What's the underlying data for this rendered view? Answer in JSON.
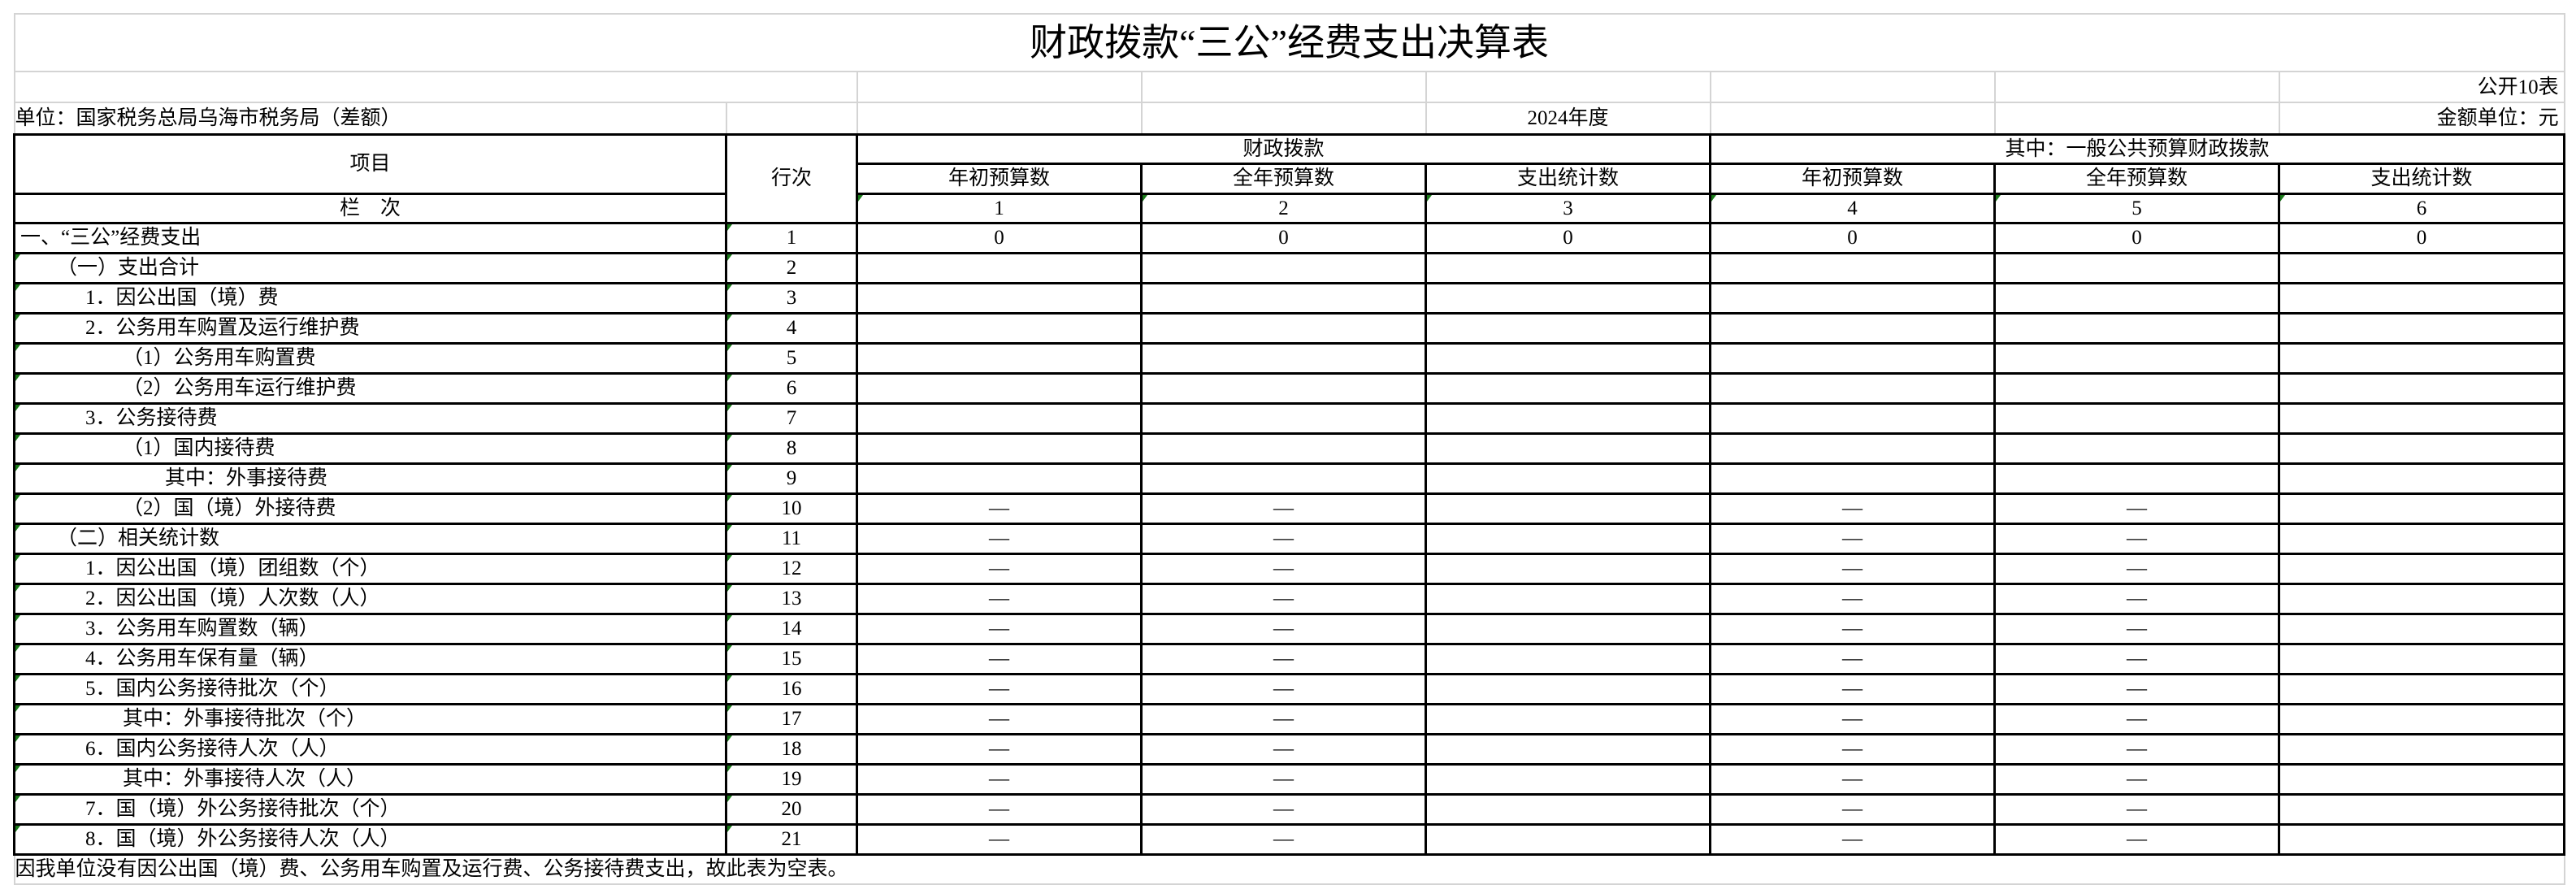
{
  "title": "财政拨款“三公”经费支出决算表",
  "form_no": "公开10表",
  "unit": "单位：国家税务总局乌海市税务局（差额）",
  "year": "2024年度",
  "amount_unit": "金额单位：元",
  "header": {
    "item": "项目",
    "line_no": "行次",
    "column_label": "栏　次",
    "group1": "财政拨款",
    "group2": "其中：一般公共预算财政拨款",
    "sub": [
      "年初预算数",
      "全年预算数",
      "支出统计数",
      "年初预算数",
      "全年预算数",
      "支出统计数"
    ],
    "col_numbers": [
      "1",
      "2",
      "3",
      "4",
      "5",
      "6"
    ]
  },
  "rows": [
    {
      "item": "一、“三公”经费支出",
      "level": 0,
      "line": "1",
      "values": [
        "0",
        "0",
        "0",
        "0",
        "0",
        "0"
      ]
    },
    {
      "item": "（一）支出合计",
      "level": 1,
      "line": "2",
      "values": [
        "",
        "",
        "",
        "",
        "",
        ""
      ]
    },
    {
      "item": "1．因公出国（境）费",
      "level": 2,
      "line": "3",
      "values": [
        "",
        "",
        "",
        "",
        "",
        ""
      ]
    },
    {
      "item": "2．公务用车购置及运行维护费",
      "level": 2,
      "line": "4",
      "values": [
        "",
        "",
        "",
        "",
        "",
        ""
      ]
    },
    {
      "item": "（1）公务用车购置费",
      "level": 3,
      "line": "5",
      "values": [
        "",
        "",
        "",
        "",
        "",
        ""
      ]
    },
    {
      "item": "（2）公务用车运行维护费",
      "level": 3,
      "line": "6",
      "values": [
        "",
        "",
        "",
        "",
        "",
        ""
      ]
    },
    {
      "item": "3．公务接待费",
      "level": 2,
      "line": "7",
      "values": [
        "",
        "",
        "",
        "",
        "",
        ""
      ]
    },
    {
      "item": "（1）国内接待费",
      "level": 3,
      "line": "8",
      "values": [
        "",
        "",
        "",
        "",
        "",
        ""
      ]
    },
    {
      "item": "其中：外事接待费",
      "level": 4,
      "line": "9",
      "values": [
        "",
        "",
        "",
        "",
        "",
        ""
      ]
    },
    {
      "item": "（2）国（境）外接待费",
      "level": 3,
      "line": "10",
      "values": [
        "—",
        "—",
        "",
        "—",
        "—",
        ""
      ]
    },
    {
      "item": "（二）相关统计数",
      "level": 1,
      "line": "11",
      "values": [
        "—",
        "—",
        "",
        "—",
        "—",
        ""
      ]
    },
    {
      "item": "1．因公出国（境）团组数（个）",
      "level": 2,
      "line": "12",
      "values": [
        "—",
        "—",
        "",
        "—",
        "—",
        ""
      ]
    },
    {
      "item": "2．因公出国（境）人次数（人）",
      "level": 2,
      "line": "13",
      "values": [
        "—",
        "—",
        "",
        "—",
        "—",
        ""
      ]
    },
    {
      "item": "3．公务用车购置数（辆）",
      "level": 2,
      "line": "14",
      "values": [
        "—",
        "—",
        "",
        "—",
        "—",
        ""
      ]
    },
    {
      "item": "4．公务用车保有量（辆）",
      "level": 2,
      "line": "15",
      "values": [
        "—",
        "—",
        "",
        "—",
        "—",
        ""
      ]
    },
    {
      "item": "5．国内公务接待批次（个）",
      "level": 2,
      "line": "16",
      "values": [
        "—",
        "—",
        "",
        "—",
        "—",
        ""
      ]
    },
    {
      "item": "其中：外事接待批次（个）",
      "level": 3,
      "line": "17",
      "values": [
        "—",
        "—",
        "",
        "—",
        "—",
        ""
      ]
    },
    {
      "item": "6．国内公务接待人次（人）",
      "level": 2,
      "line": "18",
      "values": [
        "—",
        "—",
        "",
        "—",
        "—",
        ""
      ]
    },
    {
      "item": "其中：外事接待人次（人）",
      "level": 3,
      "line": "19",
      "values": [
        "—",
        "—",
        "",
        "—",
        "—",
        ""
      ]
    },
    {
      "item": "7．国（境）外公务接待批次（个）",
      "level": 2,
      "line": "20",
      "values": [
        "—",
        "—",
        "",
        "—",
        "—",
        ""
      ]
    },
    {
      "item": "8．国（境）外公务接待人次（人）",
      "level": 2,
      "line": "21",
      "values": [
        "—",
        "—",
        "",
        "—",
        "—",
        ""
      ]
    }
  ],
  "footnote": "因我单位没有因公出国（境）费、公务用车购置及运行费、公务接待费支出，故此表为空表。",
  "colors": {
    "border": "#000000",
    "gridline": "#d4d4d4",
    "comment_marker": "#1a7a1a"
  }
}
